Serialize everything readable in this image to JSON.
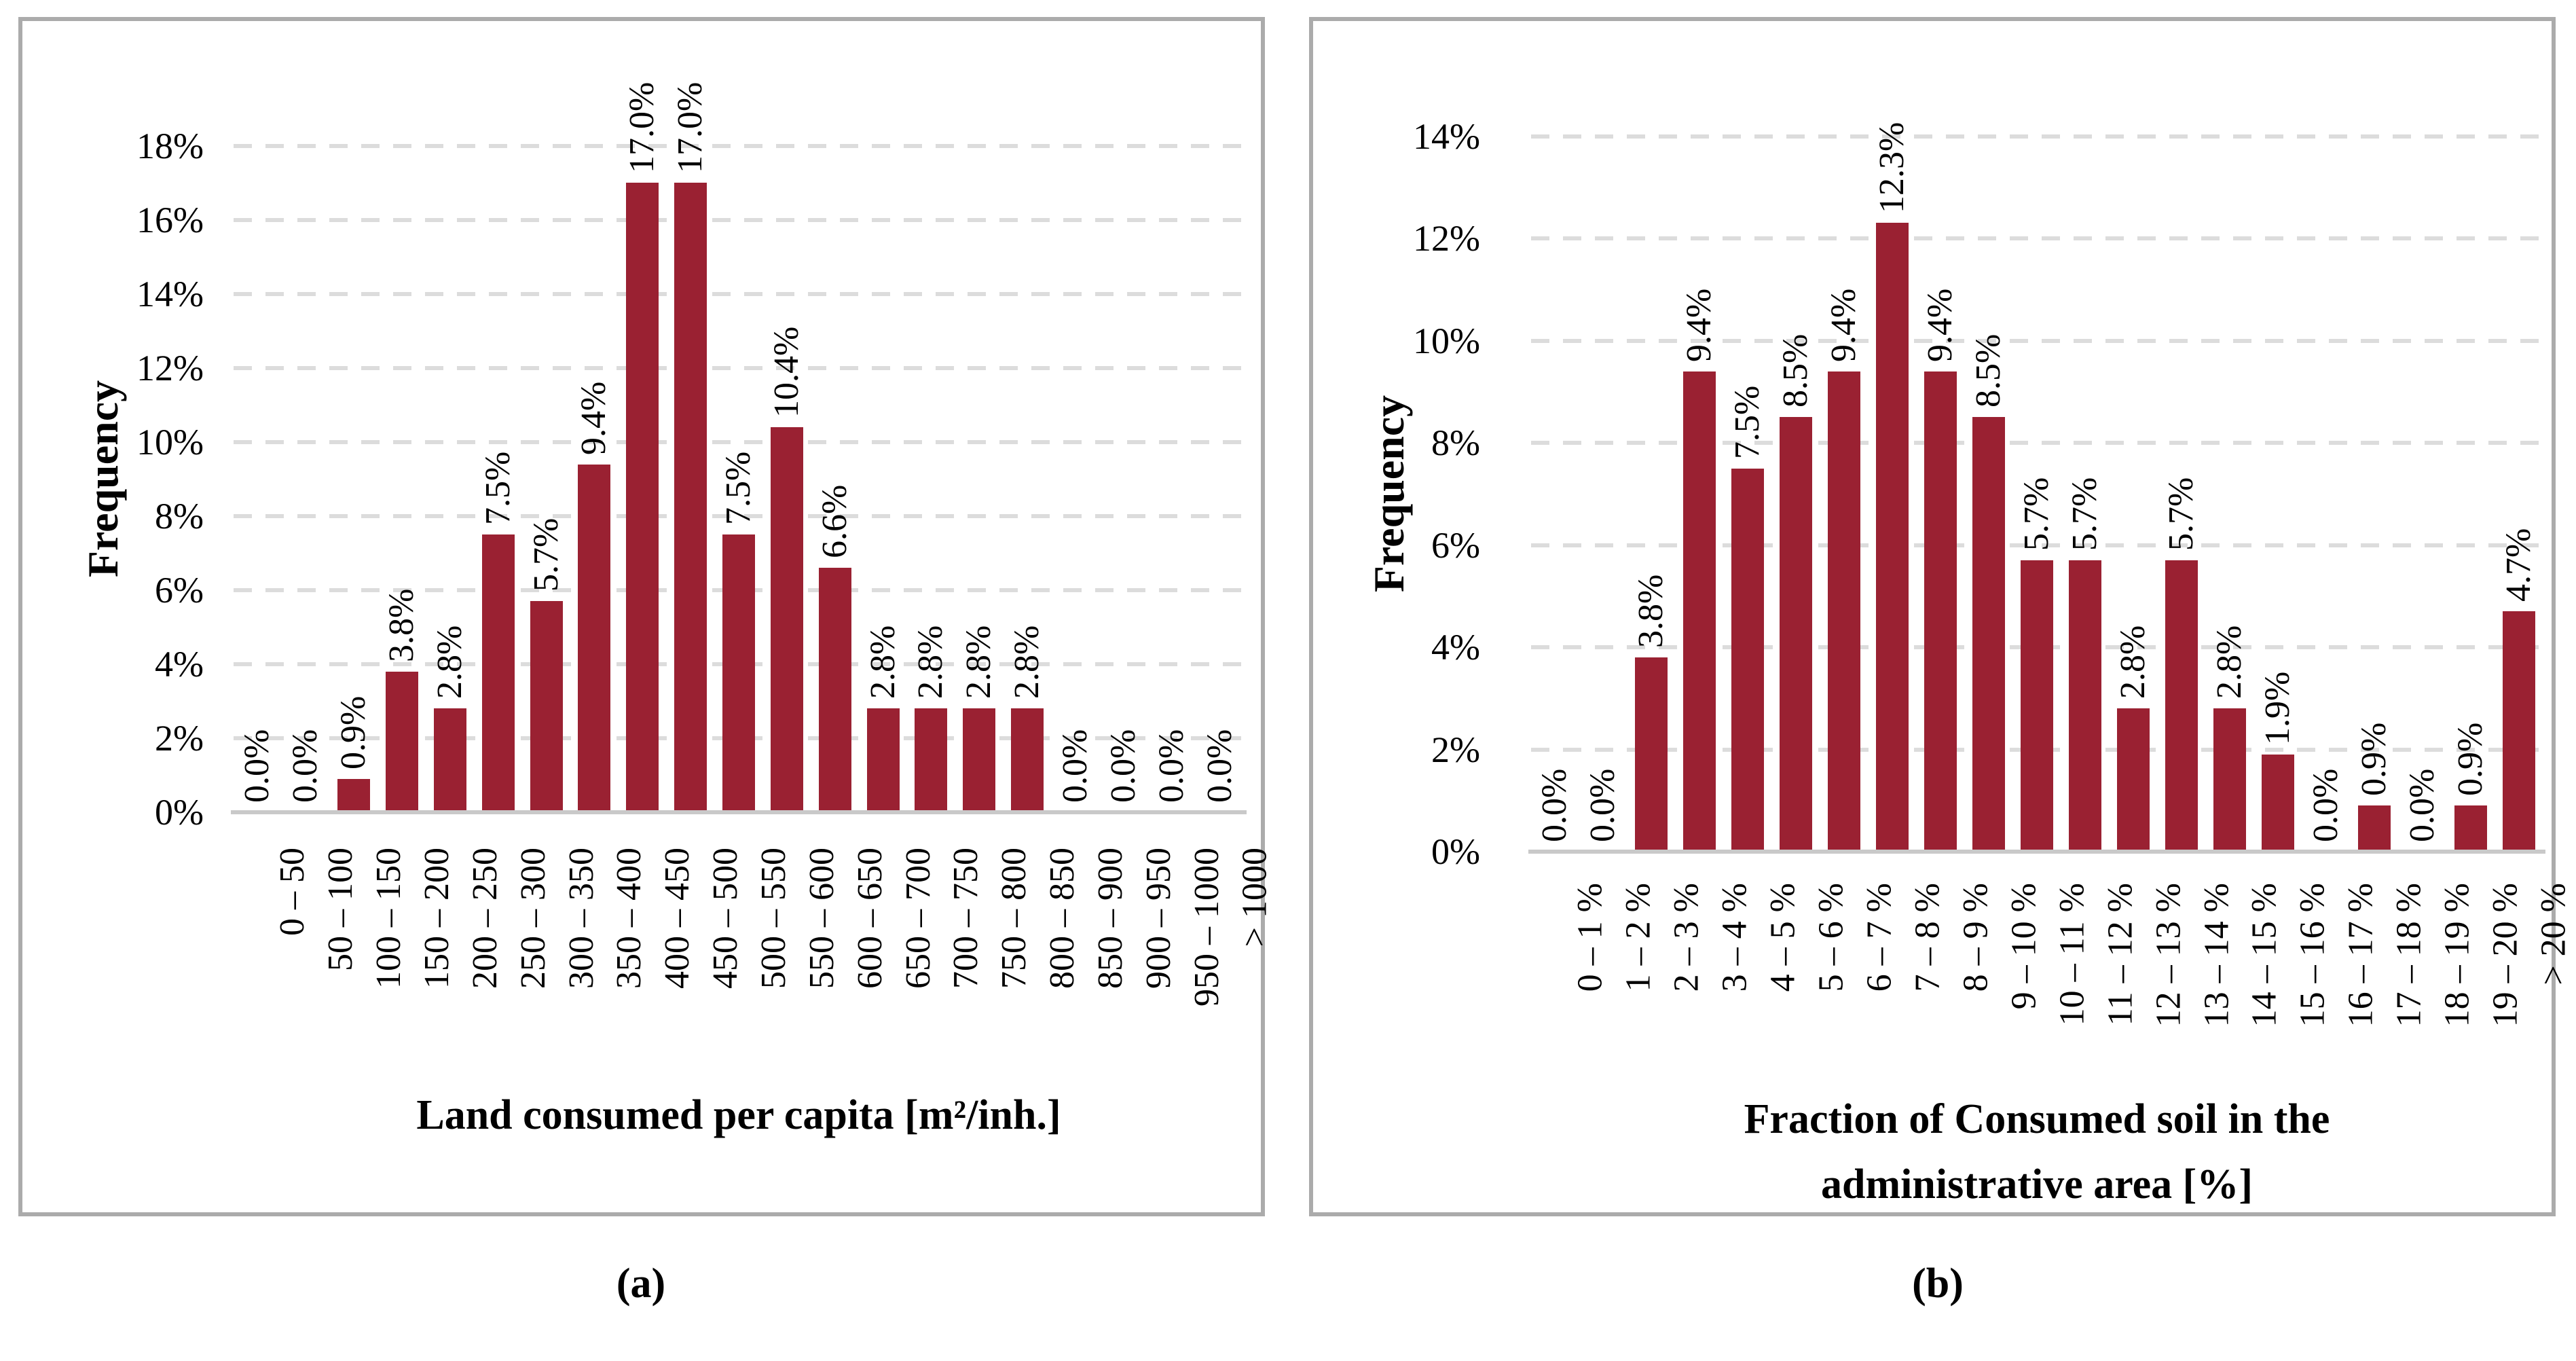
{
  "colors": {
    "bar": "#9a2132",
    "gridline": "#dcdcdc",
    "axis_line": "#c9c9c9",
    "panel_border": "#ababab",
    "text": "#000000"
  },
  "panel_a": {
    "caption": "(a)",
    "y_axis_title": "Frequency",
    "x_axis_title": "Land consumed per capita [m²/inh.]"
  },
  "panel_b": {
    "caption": "(b)",
    "y_axis_title": "Frequency",
    "x_axis_title_line1": "Fraction of Consumed soil in the",
    "x_axis_title_line2": "administrative area [%]"
  },
  "chart_data": [
    {
      "id": "a",
      "type": "bar",
      "xlabel": "Land consumed per capita [m²/inh.]",
      "ylabel": "Frequency",
      "categories": [
        "0 – 50",
        "50 – 100",
        "100 – 150",
        "150 – 200",
        "200 – 250",
        "250 – 300",
        "300 – 350",
        "350 – 400",
        "400 – 450",
        "450 – 500",
        "500 – 550",
        "550 – 600",
        "600 – 650",
        "650 – 700",
        "700 – 750",
        "750 – 800",
        "800 – 850",
        "850 – 900",
        "900 – 950",
        "950 – 1000",
        "> 1000"
      ],
      "values": [
        0.0,
        0.0,
        0.9,
        3.8,
        2.8,
        7.5,
        5.7,
        9.4,
        17.0,
        17.0,
        7.5,
        10.4,
        6.6,
        2.8,
        2.8,
        2.8,
        2.8,
        0.0,
        0.0,
        0.0,
        0.0
      ],
      "data_labels": [
        "0.0%",
        "0.0%",
        "0.9%",
        "3.8%",
        "2.8%",
        "7.5%",
        "5.7%",
        "9.4%",
        "17.0%",
        "17.0%",
        "7.5%",
        "10.4%",
        "6.6%",
        "2.8%",
        "2.8%",
        "2.8%",
        "2.8%",
        "0.0%",
        "0.0%",
        "0.0%",
        "0.0%"
      ],
      "y_ticks": [
        "0%",
        "2%",
        "4%",
        "6%",
        "8%",
        "10%",
        "12%",
        "14%",
        "16%",
        "18%"
      ],
      "ylim": [
        0,
        18
      ],
      "grid": "dashed horizontal",
      "legend": "none"
    },
    {
      "id": "b",
      "type": "bar",
      "xlabel": "Fraction of Consumed soil in the administrative area [%]",
      "ylabel": "Frequency",
      "categories": [
        "0 – 1 %",
        "1 – 2 %",
        "2 – 3 %",
        "3 – 4 %",
        "4 – 5 %",
        "5 – 6 %",
        "6 – 7 %",
        "7 – 8 %",
        "8 – 9 %",
        "9 – 10 %",
        "10 – 11 %",
        "11 – 12 %",
        "12 – 13 %",
        "13 – 14 %",
        "14 – 15 %",
        "15 – 16 %",
        "16 – 17 %",
        "17 – 18 %",
        "18 – 19 %",
        "19 – 20 %",
        "> 20 %"
      ],
      "values": [
        0.0,
        0.0,
        3.8,
        9.4,
        7.5,
        8.5,
        9.4,
        12.3,
        9.4,
        8.5,
        5.7,
        5.7,
        2.8,
        5.7,
        2.8,
        1.9,
        0.0,
        0.9,
        0.0,
        0.9,
        4.7
      ],
      "data_labels": [
        "0.0%",
        "0.0%",
        "3.8%",
        "9.4%",
        "7.5%",
        "8.5%",
        "9.4%",
        "12.3%",
        "9.4%",
        "8.5%",
        "5.7%",
        "5.7%",
        "2.8%",
        "5.7%",
        "2.8%",
        "1.9%",
        "0.0%",
        "0.9%",
        "0.0%",
        "0.9%",
        "4.7%"
      ],
      "y_ticks": [
        "0%",
        "2%",
        "4%",
        "6%",
        "8%",
        "10%",
        "12%",
        "14%"
      ],
      "ylim": [
        0,
        14
      ],
      "grid": "dashed horizontal",
      "legend": "none"
    }
  ]
}
